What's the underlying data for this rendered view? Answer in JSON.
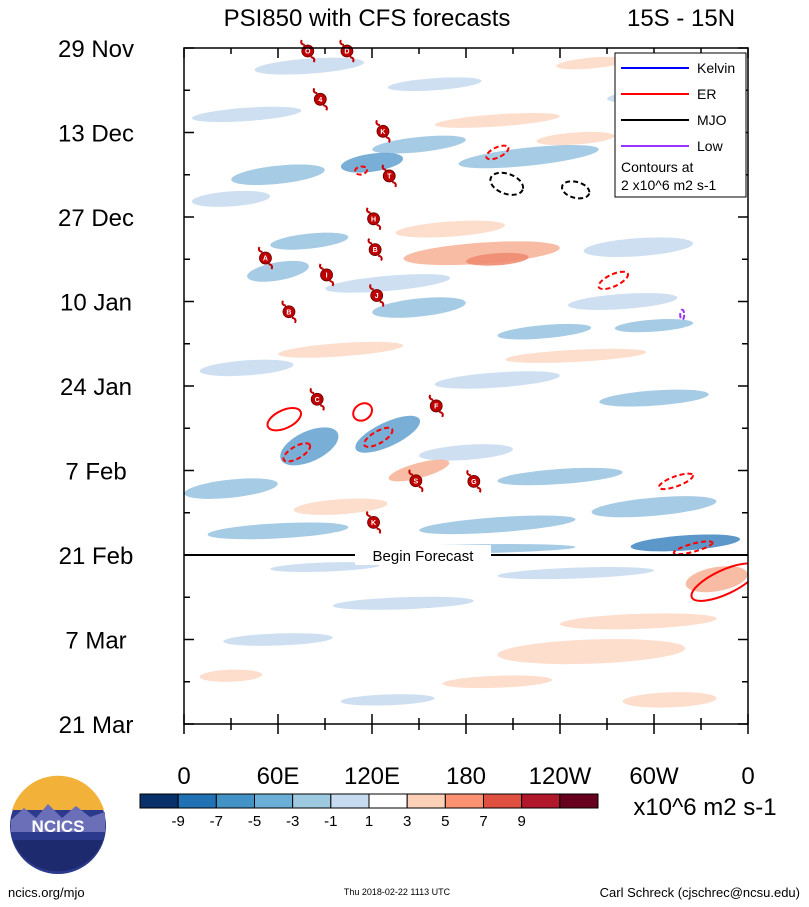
{
  "chart_data": {
    "type": "heatmap",
    "title": "PSI850 with CFS forecasts",
    "region": "15S - 15N",
    "x_ticks": [
      "0",
      "60E",
      "120E",
      "180",
      "120W",
      "60W",
      "0"
    ],
    "x_values_deg_east": [
      0,
      60,
      120,
      180,
      240,
      300,
      360
    ],
    "y_ticks": [
      "29 Nov",
      "13 Dec",
      "27 Dec",
      "10 Jan",
      "24 Jan",
      "7 Feb",
      "21 Feb",
      "7 Mar",
      "21 Mar"
    ],
    "y_range_days": [
      0,
      112
    ],
    "forecast_start_day": 84,
    "forecast_label": "Begin Forecast",
    "colorbar": {
      "labels": [
        "-9",
        "-7",
        "-5",
        "-3",
        "-1",
        "1",
        "3",
        "5",
        "7",
        "9"
      ],
      "colors": [
        "#08306b",
        "#2171b5",
        "#4292c6",
        "#6baed6",
        "#9ecae1",
        "#c6dbef",
        "#ffffff",
        "#fdd0b8",
        "#fc9272",
        "#e05040",
        "#b2182b",
        "#67001f"
      ],
      "units": "x10^6 m2 s-1"
    },
    "legend": {
      "entries": [
        {
          "name": "Kelvin",
          "color": "#0000ff"
        },
        {
          "name": "ER",
          "color": "#ff0000"
        },
        {
          "name": "MJO",
          "color": "#000000"
        },
        {
          "name": "Low",
          "color": "#9933ff"
        }
      ],
      "note_line1": "Contours at",
      "note_line2": "2 x10^6 m2 s-1"
    },
    "storms": [
      {
        "label": "O",
        "lon": 79,
        "day": 0.5
      },
      {
        "label": "D",
        "lon": 104,
        "day": 0.5
      },
      {
        "label": "4",
        "lon": 87,
        "day": 8.5
      },
      {
        "label": "K",
        "lon": 127,
        "day": 13.8
      },
      {
        "label": "T",
        "lon": 131,
        "day": 21.2
      },
      {
        "label": "H",
        "lon": 121,
        "day": 28.3
      },
      {
        "label": "B",
        "lon": 122,
        "day": 33.4
      },
      {
        "label": "A",
        "lon": 52,
        "day": 34.8
      },
      {
        "label": "I",
        "lon": 91,
        "day": 37.6
      },
      {
        "label": "J",
        "lon": 123,
        "day": 41.0
      },
      {
        "label": "B",
        "lon": 67,
        "day": 43.7
      },
      {
        "label": "C",
        "lon": 85,
        "day": 58.2
      },
      {
        "label": "F",
        "lon": 161,
        "day": 59.3
      },
      {
        "label": "S",
        "lon": 148,
        "day": 71.7
      },
      {
        "label": "G",
        "lon": 185,
        "day": 71.8
      },
      {
        "label": "K",
        "lon": 121,
        "day": 78.6
      }
    ],
    "contours": [
      {
        "wave": "ER",
        "style": "solid",
        "lon": 64,
        "day": 61.5,
        "rx": 18,
        "ry": 9,
        "angle": -25
      },
      {
        "wave": "ER",
        "style": "dashed",
        "lon": 72,
        "day": 67,
        "rx": 15,
        "ry": 6,
        "angle": -30
      },
      {
        "wave": "ER",
        "style": "solid",
        "lon": 114,
        "day": 60.3,
        "rx": 10,
        "ry": 8,
        "angle": -35
      },
      {
        "wave": "ER",
        "style": "dashed",
        "lon": 124,
        "day": 64.5,
        "rx": 16,
        "ry": 6,
        "angle": -30
      },
      {
        "wave": "ER",
        "style": "dashed",
        "lon": 200,
        "day": 17.3,
        "rx": 12,
        "ry": 5,
        "angle": -25
      },
      {
        "wave": "ER",
        "style": "dashed",
        "lon": 113,
        "day": 20.3,
        "rx": 6,
        "ry": 4,
        "angle": -10
      },
      {
        "wave": "ER",
        "style": "dashed",
        "lon": 274,
        "day": 38.5,
        "rx": 16,
        "ry": 6,
        "angle": -25
      },
      {
        "wave": "ER",
        "style": "dashed",
        "lon": 314,
        "day": 71.8,
        "rx": 18,
        "ry": 5,
        "angle": -20
      },
      {
        "wave": "ER",
        "style": "dashed",
        "lon": 325,
        "day": 82.8,
        "rx": 20,
        "ry": 4,
        "angle": -15
      },
      {
        "wave": "ER",
        "style": "solid",
        "lon": 345,
        "day": 88.5,
        "rx": 36,
        "ry": 12,
        "angle": -25
      },
      {
        "wave": "MJO",
        "style": "dashed",
        "lon": 206,
        "day": 22.5,
        "rx": 17,
        "ry": 10,
        "angle": 20
      },
      {
        "wave": "MJO",
        "style": "dashed",
        "lon": 250,
        "day": 23.5,
        "rx": 14,
        "ry": 8,
        "angle": 15
      },
      {
        "wave": "Low",
        "style": "dashed",
        "lon": 318,
        "day": 44.2,
        "rx": 2,
        "ry": 5,
        "angle": 0
      }
    ],
    "anomaly_patches": [
      {
        "lon": 80,
        "day": 3,
        "w": 70,
        "h": 2.5,
        "v": -1,
        "a": -4
      },
      {
        "lon": 160,
        "day": 6,
        "w": 60,
        "h": 2,
        "v": -1,
        "a": -4
      },
      {
        "lon": 260,
        "day": 2.5,
        "w": 45,
        "h": 1.8,
        "v": 1,
        "a": -5
      },
      {
        "lon": 300,
        "day": 8,
        "w": 60,
        "h": 2.2,
        "v": -1,
        "a": -3
      },
      {
        "lon": 40,
        "day": 11,
        "w": 70,
        "h": 2.2,
        "v": -1,
        "a": -4
      },
      {
        "lon": 200,
        "day": 12,
        "w": 80,
        "h": 2,
        "v": 1,
        "a": -4
      },
      {
        "lon": 150,
        "day": 16,
        "w": 60,
        "h": 2.5,
        "v": -3,
        "a": -6
      },
      {
        "lon": 220,
        "day": 18,
        "w": 90,
        "h": 3,
        "v": -3,
        "a": -6
      },
      {
        "lon": 120,
        "day": 19,
        "w": 40,
        "h": 3,
        "v": -5,
        "a": -8
      },
      {
        "lon": 60,
        "day": 21,
        "w": 60,
        "h": 3,
        "v": -3,
        "a": -6
      },
      {
        "lon": 30,
        "day": 25,
        "w": 50,
        "h": 2.5,
        "v": -1,
        "a": -4
      },
      {
        "lon": 250,
        "day": 15,
        "w": 50,
        "h": 2,
        "v": 1,
        "a": -4
      },
      {
        "lon": 170,
        "day": 30,
        "w": 70,
        "h": 2.5,
        "v": 1,
        "a": -4
      },
      {
        "lon": 190,
        "day": 34,
        "w": 100,
        "h": 3.5,
        "v": 3,
        "a": -4
      },
      {
        "lon": 200,
        "day": 35,
        "w": 40,
        "h": 2,
        "v": 5,
        "a": -4
      },
      {
        "lon": 290,
        "day": 33,
        "w": 70,
        "h": 3,
        "v": -1,
        "a": -4
      },
      {
        "lon": 80,
        "day": 32,
        "w": 50,
        "h": 2.5,
        "v": -3,
        "a": -6
      },
      {
        "lon": 60,
        "day": 37,
        "w": 40,
        "h": 3,
        "v": -3,
        "a": -10
      },
      {
        "lon": 130,
        "day": 39,
        "w": 80,
        "h": 2.5,
        "v": -1,
        "a": -5
      },
      {
        "lon": 150,
        "day": 43,
        "w": 60,
        "h": 3,
        "v": -3,
        "a": -6
      },
      {
        "lon": 280,
        "day": 42,
        "w": 70,
        "h": 2.5,
        "v": -1,
        "a": -4
      },
      {
        "lon": 230,
        "day": 47,
        "w": 60,
        "h": 2.2,
        "v": -3,
        "a": -5
      },
      {
        "lon": 300,
        "day": 46,
        "w": 50,
        "h": 2,
        "v": -3,
        "a": -4
      },
      {
        "lon": 100,
        "day": 50,
        "w": 80,
        "h": 2.2,
        "v": 1,
        "a": -4
      },
      {
        "lon": 250,
        "day": 51,
        "w": 90,
        "h": 2,
        "v": 1,
        "a": -3
      },
      {
        "lon": 40,
        "day": 53,
        "w": 60,
        "h": 2.5,
        "v": -1,
        "a": -4
      },
      {
        "lon": 200,
        "day": 55,
        "w": 80,
        "h": 2.5,
        "v": -1,
        "a": -4
      },
      {
        "lon": 300,
        "day": 58,
        "w": 70,
        "h": 2.5,
        "v": -3,
        "a": -4
      },
      {
        "lon": 80,
        "day": 66,
        "w": 40,
        "h": 5,
        "v": -5,
        "a": -25
      },
      {
        "lon": 130,
        "day": 64,
        "w": 45,
        "h": 4,
        "v": -5,
        "a": -25
      },
      {
        "lon": 180,
        "day": 67,
        "w": 60,
        "h": 2.5,
        "v": -1,
        "a": -4
      },
      {
        "lon": 150,
        "day": 70,
        "w": 40,
        "h": 2.5,
        "v": 3,
        "a": -15
      },
      {
        "lon": 240,
        "day": 71,
        "w": 80,
        "h": 2.5,
        "v": -3,
        "a": -4
      },
      {
        "lon": 30,
        "day": 73,
        "w": 60,
        "h": 3,
        "v": -3,
        "a": -6
      },
      {
        "lon": 100,
        "day": 76,
        "w": 60,
        "h": 2.5,
        "v": 1,
        "a": -4
      },
      {
        "lon": 300,
        "day": 76,
        "w": 80,
        "h": 3,
        "v": -3,
        "a": -5
      },
      {
        "lon": 200,
        "day": 79,
        "w": 100,
        "h": 2.5,
        "v": -3,
        "a": -4
      },
      {
        "lon": 60,
        "day": 80,
        "w": 90,
        "h": 2.5,
        "v": -3,
        "a": -3
      },
      {
        "lon": 320,
        "day": 82,
        "w": 70,
        "h": 2.5,
        "v": -7,
        "a": -4
      },
      {
        "lon": 180,
        "day": 83,
        "w": 140,
        "h": 1.5,
        "v": -3,
        "a": -1
      },
      {
        "lon": 90,
        "day": 86,
        "w": 70,
        "h": 1.5,
        "v": -1,
        "a": -2
      },
      {
        "lon": 250,
        "day": 87,
        "w": 100,
        "h": 1.8,
        "v": -1,
        "a": -2
      },
      {
        "lon": 340,
        "day": 88,
        "w": 40,
        "h": 4,
        "v": 3,
        "a": -10
      },
      {
        "lon": 140,
        "day": 92,
        "w": 90,
        "h": 2,
        "v": -1,
        "a": -2
      },
      {
        "lon": 290,
        "day": 95,
        "w": 100,
        "h": 2.5,
        "v": 1,
        "a": -2
      },
      {
        "lon": 60,
        "day": 98,
        "w": 70,
        "h": 2,
        "v": -1,
        "a": -2
      },
      {
        "lon": 260,
        "day": 100,
        "w": 120,
        "h": 4,
        "v": 1,
        "a": -2
      },
      {
        "lon": 30,
        "day": 104,
        "w": 40,
        "h": 2,
        "v": 1,
        "a": -2
      },
      {
        "lon": 200,
        "day": 105,
        "w": 70,
        "h": 2,
        "v": 1,
        "a": -2
      },
      {
        "lon": 310,
        "day": 108,
        "w": 60,
        "h": 2.5,
        "v": 1,
        "a": -2
      },
      {
        "lon": 130,
        "day": 108,
        "w": 60,
        "h": 1.8,
        "v": -1,
        "a": -2
      }
    ]
  },
  "logo": {
    "text": "NCICS"
  },
  "footer": {
    "left": "ncics.org/mjo",
    "center": "Thu 2018-02-22 1113 UTC",
    "right": "Carl Schreck (cjschrec@ncsu.edu)"
  }
}
